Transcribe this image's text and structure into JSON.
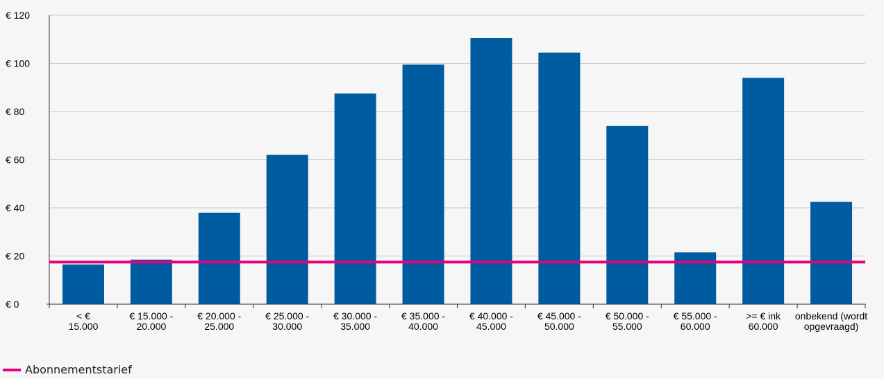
{
  "chart_data": {
    "type": "bar",
    "categories": [
      [
        "< €",
        "15.000"
      ],
      [
        "€ 15.000 -",
        "20.000"
      ],
      [
        "€ 20.000 -",
        "25.000"
      ],
      [
        "€ 25.000 -",
        "30.000"
      ],
      [
        "€ 30.000 -",
        "35.000"
      ],
      [
        "€ 35.000 -",
        "40.000"
      ],
      [
        "€ 40.000 -",
        "45.000"
      ],
      [
        "€ 45.000 -",
        "50.000"
      ],
      [
        "€ 50.000 -",
        "55.000"
      ],
      [
        "€ 55.000 -",
        "60.000"
      ],
      [
        ">= € ink",
        "60.000"
      ],
      [
        "onbekend (wordt",
        "opgevraagd)"
      ]
    ],
    "values": [
      16.5,
      18.5,
      38,
      62,
      87.5,
      99.5,
      110.5,
      104.5,
      74,
      21.5,
      94,
      42.5
    ],
    "ylim": [
      0,
      120
    ],
    "yticks": [
      0,
      20,
      40,
      60,
      80,
      100,
      120
    ],
    "ytick_labels": [
      "€ 0",
      "€ 20",
      "€ 40",
      "€ 60",
      "€ 80",
      "€ 100",
      "€ 120"
    ],
    "grid": true,
    "reference_line": {
      "name": "Abonnementstarief",
      "value": 17.5
    },
    "legend_placement": "bottom-left",
    "colors": {
      "bars": "#005ca1",
      "reference_line": "#e6007e",
      "grid": "#c8c8c8"
    }
  }
}
